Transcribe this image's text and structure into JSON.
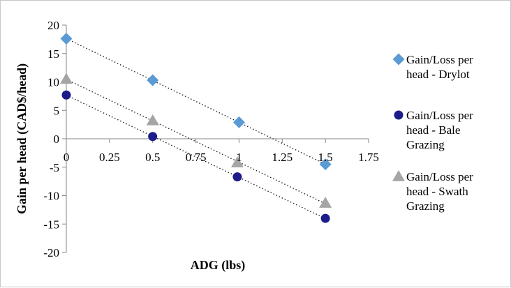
{
  "chart_data": {
    "type": "scatter",
    "title": "",
    "xlabel": "ADG (lbs)",
    "ylabel": "Gain per head (CAD$/head)",
    "xlim": [
      0,
      1.75
    ],
    "ylim": [
      -20,
      20
    ],
    "x_ticks": [
      "0",
      "0.25",
      "0.5",
      "0.75",
      "1",
      "1.25",
      "1.5",
      "1.75"
    ],
    "y_ticks": [
      "20",
      "15",
      "10",
      "5",
      "0",
      "-5",
      "-10",
      "-15",
      "-20"
    ],
    "x_tick_values": [
      0,
      0.25,
      0.5,
      0.75,
      1,
      1.25,
      1.5,
      1.75
    ],
    "y_tick_values": [
      20,
      15,
      10,
      5,
      0,
      -5,
      -10,
      -15,
      -20
    ],
    "legend_position": "right",
    "grid": false,
    "trendlines": "linear, dotted",
    "series": [
      {
        "name": "Gain/Loss per head - Drylot",
        "legend_lines": [
          "Gain/Loss per",
          "head - Drylot"
        ],
        "marker": "diamond",
        "color": "#5b9bd5",
        "points": [
          [
            0,
            17.6
          ],
          [
            0.5,
            10.3
          ],
          [
            1,
            2.9
          ],
          [
            1.5,
            -4.5
          ]
        ]
      },
      {
        "name": "Gain/Loss per head - Bale Grazing",
        "legend_lines": [
          "Gain/Loss per",
          "head - Bale",
          "Grazing"
        ],
        "marker": "circle",
        "color": "#1c1c8a",
        "points": [
          [
            0,
            7.7
          ],
          [
            0.5,
            0.4
          ],
          [
            0.99,
            -6.7
          ],
          [
            1.5,
            -14.0
          ]
        ]
      },
      {
        "name": "Gain/Loss per head - Swath Grazing",
        "legend_lines": [
          "Gain/Loss per",
          "head - Swath",
          "Grazing"
        ],
        "marker": "triangle",
        "color": "#a5a5a5",
        "points": [
          [
            0,
            10.5
          ],
          [
            0.5,
            3.2
          ],
          [
            0.99,
            -4.2
          ],
          [
            1.5,
            -11.3
          ]
        ]
      }
    ]
  }
}
